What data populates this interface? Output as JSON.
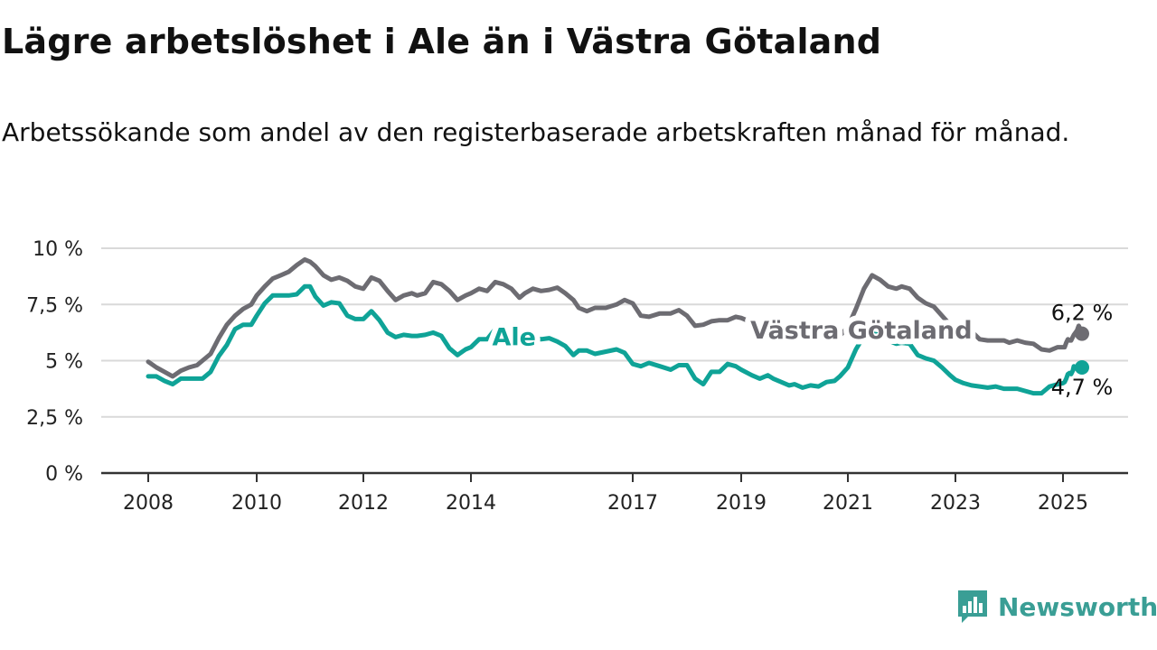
{
  "page": {
    "title": "Lägre arbetslöshet i Ale än i Västra Götaland",
    "subtitle": "Arbetssökande som andel av den registerbaserade arbetskraften månad för månad.",
    "brand": "Newsworthy"
  },
  "colors": {
    "ale": "#0fa397",
    "vg": "#6d6c72",
    "grid": "#d9d9d9",
    "axis": "#333333"
  },
  "chart_data": {
    "type": "line",
    "xlim": [
      2008,
      2025.7
    ],
    "ylim": [
      0,
      10
    ],
    "x_ticks": [
      2008,
      2010,
      2012,
      2014,
      2017,
      2019,
      2021,
      2023,
      2025
    ],
    "y_ticks": [
      {
        "value": 0,
        "label": "0 %"
      },
      {
        "value": 2.5,
        "label": "2,5 %"
      },
      {
        "value": 5,
        "label": "5 %"
      },
      {
        "value": 7.5,
        "label": "7,5 %"
      },
      {
        "value": 10,
        "label": "10 %"
      }
    ],
    "grid": true,
    "series": [
      {
        "name": "Västra Götaland",
        "key": "vg",
        "end_label": "6,2 %",
        "points": [
          [
            2008.0,
            4.95
          ],
          [
            2008.15,
            4.7
          ],
          [
            2008.3,
            4.5
          ],
          [
            2008.45,
            4.3
          ],
          [
            2008.6,
            4.55
          ],
          [
            2008.75,
            4.7
          ],
          [
            2008.9,
            4.8
          ],
          [
            2009.0,
            5.0
          ],
          [
            2009.15,
            5.3
          ],
          [
            2009.3,
            6.0
          ],
          [
            2009.45,
            6.6
          ],
          [
            2009.6,
            7.0
          ],
          [
            2009.75,
            7.3
          ],
          [
            2009.9,
            7.5
          ],
          [
            2010.0,
            7.9
          ],
          [
            2010.15,
            8.3
          ],
          [
            2010.3,
            8.65
          ],
          [
            2010.45,
            8.8
          ],
          [
            2010.6,
            8.95
          ],
          [
            2010.75,
            9.25
          ],
          [
            2010.9,
            9.5
          ],
          [
            2011.0,
            9.4
          ],
          [
            2011.1,
            9.2
          ],
          [
            2011.25,
            8.8
          ],
          [
            2011.4,
            8.6
          ],
          [
            2011.55,
            8.7
          ],
          [
            2011.7,
            8.55
          ],
          [
            2011.85,
            8.3
          ],
          [
            2012.0,
            8.2
          ],
          [
            2012.15,
            8.7
          ],
          [
            2012.3,
            8.55
          ],
          [
            2012.45,
            8.1
          ],
          [
            2012.6,
            7.7
          ],
          [
            2012.75,
            7.9
          ],
          [
            2012.9,
            8.0
          ],
          [
            2013.0,
            7.9
          ],
          [
            2013.15,
            8.0
          ],
          [
            2013.3,
            8.5
          ],
          [
            2013.45,
            8.4
          ],
          [
            2013.6,
            8.1
          ],
          [
            2013.75,
            7.7
          ],
          [
            2013.9,
            7.9
          ],
          [
            2014.0,
            8.0
          ],
          [
            2014.15,
            8.2
          ],
          [
            2014.3,
            8.1
          ],
          [
            2014.45,
            8.5
          ],
          [
            2014.6,
            8.4
          ],
          [
            2014.75,
            8.2
          ],
          [
            2014.9,
            7.8
          ],
          [
            2015.0,
            8.0
          ],
          [
            2015.15,
            8.2
          ],
          [
            2015.3,
            8.1
          ],
          [
            2015.45,
            8.15
          ],
          [
            2015.6,
            8.25
          ],
          [
            2015.75,
            8.0
          ],
          [
            2015.9,
            7.7
          ],
          [
            2016.0,
            7.35
          ],
          [
            2016.15,
            7.2
          ],
          [
            2016.3,
            7.35
          ],
          [
            2016.5,
            7.35
          ],
          [
            2016.7,
            7.5
          ],
          [
            2016.85,
            7.7
          ],
          [
            2017.0,
            7.55
          ],
          [
            2017.15,
            7.0
          ],
          [
            2017.3,
            6.95
          ],
          [
            2017.5,
            7.1
          ],
          [
            2017.7,
            7.1
          ],
          [
            2017.85,
            7.25
          ],
          [
            2018.0,
            7.0
          ],
          [
            2018.15,
            6.55
          ],
          [
            2018.3,
            6.6
          ],
          [
            2018.45,
            6.75
          ],
          [
            2018.6,
            6.8
          ],
          [
            2018.75,
            6.8
          ],
          [
            2018.9,
            6.95
          ],
          [
            2019.0,
            6.9
          ],
          [
            2019.2,
            6.7
          ],
          [
            2019.35,
            6.5
          ],
          [
            2019.5,
            6.3
          ],
          [
            2019.6,
            6.2
          ],
          [
            2019.75,
            6.1
          ],
          [
            2019.9,
            6.05
          ],
          [
            2020.0,
            6.1
          ],
          [
            2020.15,
            6.0
          ],
          [
            2020.3,
            5.95
          ],
          [
            2020.45,
            6.0
          ],
          [
            2020.6,
            5.95
          ],
          [
            2020.75,
            6.0
          ],
          [
            2020.85,
            6.1
          ],
          [
            2021.0,
            6.5
          ],
          [
            2021.15,
            7.3
          ],
          [
            2021.3,
            8.2
          ],
          [
            2021.45,
            8.8
          ],
          [
            2021.6,
            8.6
          ],
          [
            2021.75,
            8.3
          ],
          [
            2021.9,
            8.2
          ],
          [
            2022.0,
            8.3
          ],
          [
            2022.15,
            8.2
          ],
          [
            2022.3,
            7.8
          ],
          [
            2022.45,
            7.55
          ],
          [
            2022.6,
            7.4
          ],
          [
            2022.75,
            7.0
          ],
          [
            2022.9,
            6.6
          ],
          [
            2023.0,
            6.5
          ],
          [
            2023.15,
            6.5
          ],
          [
            2023.3,
            6.3
          ],
          [
            2023.45,
            5.95
          ],
          [
            2023.6,
            5.9
          ],
          [
            2023.75,
            5.9
          ],
          [
            2023.9,
            5.9
          ],
          [
            2024.0,
            5.8
          ],
          [
            2024.15,
            5.9
          ],
          [
            2024.3,
            5.8
          ],
          [
            2024.45,
            5.75
          ],
          [
            2024.6,
            5.5
          ],
          [
            2024.75,
            5.45
          ],
          [
            2024.9,
            5.6
          ],
          [
            2025.0,
            5.6
          ],
          [
            2025.15,
            5.6
          ],
          [
            2025.3,
            5.8
          ],
          [
            2025.45,
            5.95
          ],
          [
            2025.6,
            5.9
          ],
          [
            2025.75,
            5.9
          ],
          [
            2025.9,
            6.05
          ],
          [
            2026.0,
            6.15
          ],
          [
            2026.15,
            6.25
          ],
          [
            2026.3,
            6.35
          ],
          [
            2026.45,
            6.55
          ],
          [
            2026.6,
            6.4
          ],
          [
            2026.75,
            6.2
          ]
        ]
      },
      {
        "name": "Ale",
        "key": "ale",
        "end_label": "4,7 %",
        "points": [
          [
            2008.0,
            4.3
          ],
          [
            2008.15,
            4.3
          ],
          [
            2008.3,
            4.1
          ],
          [
            2008.45,
            3.95
          ],
          [
            2008.6,
            4.2
          ],
          [
            2008.75,
            4.2
          ],
          [
            2008.9,
            4.2
          ],
          [
            2009.0,
            4.2
          ],
          [
            2009.15,
            4.5
          ],
          [
            2009.3,
            5.2
          ],
          [
            2009.45,
            5.7
          ],
          [
            2009.6,
            6.4
          ],
          [
            2009.75,
            6.6
          ],
          [
            2009.9,
            6.6
          ],
          [
            2010.0,
            7.0
          ],
          [
            2010.15,
            7.55
          ],
          [
            2010.3,
            7.9
          ],
          [
            2010.45,
            7.9
          ],
          [
            2010.6,
            7.9
          ],
          [
            2010.75,
            7.95
          ],
          [
            2010.9,
            8.3
          ],
          [
            2011.0,
            8.3
          ],
          [
            2011.1,
            7.85
          ],
          [
            2011.25,
            7.45
          ],
          [
            2011.4,
            7.6
          ],
          [
            2011.55,
            7.55
          ],
          [
            2011.7,
            7.0
          ],
          [
            2011.85,
            6.85
          ],
          [
            2012.0,
            6.85
          ],
          [
            2012.15,
            7.2
          ],
          [
            2012.3,
            6.8
          ],
          [
            2012.45,
            6.25
          ],
          [
            2012.6,
            6.05
          ],
          [
            2012.75,
            6.15
          ],
          [
            2012.9,
            6.1
          ],
          [
            2013.0,
            6.1
          ],
          [
            2013.15,
            6.15
          ],
          [
            2013.3,
            6.25
          ],
          [
            2013.45,
            6.1
          ],
          [
            2013.6,
            5.55
          ],
          [
            2013.75,
            5.25
          ],
          [
            2013.9,
            5.5
          ],
          [
            2014.0,
            5.6
          ],
          [
            2014.15,
            5.95
          ],
          [
            2014.3,
            5.95
          ],
          [
            2014.45,
            6.4
          ],
          [
            2014.6,
            6.45
          ],
          [
            2014.75,
            6.4
          ],
          [
            2014.9,
            5.95
          ],
          [
            2015.0,
            6.0
          ],
          [
            2015.15,
            6.05
          ],
          [
            2015.3,
            5.95
          ],
          [
            2015.45,
            6.0
          ],
          [
            2015.6,
            5.85
          ],
          [
            2015.75,
            5.65
          ],
          [
            2015.9,
            5.25
          ],
          [
            2016.0,
            5.45
          ],
          [
            2016.15,
            5.45
          ],
          [
            2016.3,
            5.3
          ],
          [
            2016.5,
            5.4
          ],
          [
            2016.7,
            5.5
          ],
          [
            2016.85,
            5.35
          ],
          [
            2017.0,
            4.85
          ],
          [
            2017.15,
            4.75
          ],
          [
            2017.3,
            4.9
          ],
          [
            2017.5,
            4.75
          ],
          [
            2017.7,
            4.6
          ],
          [
            2017.85,
            4.8
          ],
          [
            2018.0,
            4.8
          ],
          [
            2018.15,
            4.2
          ],
          [
            2018.3,
            3.95
          ],
          [
            2018.45,
            4.5
          ],
          [
            2018.6,
            4.5
          ],
          [
            2018.75,
            4.85
          ],
          [
            2018.9,
            4.75
          ],
          [
            2019.0,
            4.6
          ],
          [
            2019.2,
            4.35
          ],
          [
            2019.35,
            4.2
          ],
          [
            2019.5,
            4.35
          ],
          [
            2019.6,
            4.2
          ],
          [
            2019.75,
            4.05
          ],
          [
            2019.9,
            3.9
          ],
          [
            2020.0,
            3.95
          ],
          [
            2020.15,
            3.8
          ],
          [
            2020.3,
            3.9
          ],
          [
            2020.45,
            3.85
          ],
          [
            2020.6,
            4.05
          ],
          [
            2020.75,
            4.1
          ],
          [
            2020.85,
            4.3
          ],
          [
            2021.0,
            4.7
          ],
          [
            2021.15,
            5.5
          ],
          [
            2021.3,
            6.1
          ],
          [
            2021.45,
            6.2
          ],
          [
            2021.6,
            6.15
          ],
          [
            2021.75,
            5.9
          ],
          [
            2021.9,
            5.75
          ],
          [
            2022.0,
            5.8
          ],
          [
            2022.15,
            5.75
          ],
          [
            2022.3,
            5.25
          ],
          [
            2022.45,
            5.1
          ],
          [
            2022.6,
            5.0
          ],
          [
            2022.75,
            4.7
          ],
          [
            2022.9,
            4.35
          ],
          [
            2023.0,
            4.15
          ],
          [
            2023.15,
            4.0
          ],
          [
            2023.3,
            3.9
          ],
          [
            2023.45,
            3.85
          ],
          [
            2023.6,
            3.8
          ],
          [
            2023.75,
            3.85
          ],
          [
            2023.9,
            3.75
          ],
          [
            2024.0,
            3.75
          ],
          [
            2024.15,
            3.75
          ],
          [
            2024.3,
            3.65
          ],
          [
            2024.45,
            3.55
          ],
          [
            2024.6,
            3.55
          ],
          [
            2024.75,
            3.85
          ],
          [
            2024.9,
            3.95
          ],
          [
            2025.0,
            4.0
          ],
          [
            2025.15,
            4.05
          ],
          [
            2025.3,
            4.2
          ],
          [
            2025.45,
            4.4
          ],
          [
            2025.6,
            4.45
          ],
          [
            2025.75,
            4.4
          ],
          [
            2025.9,
            4.55
          ],
          [
            2026.0,
            4.75
          ],
          [
            2026.15,
            4.65
          ],
          [
            2026.3,
            4.75
          ],
          [
            2026.45,
            4.8
          ],
          [
            2026.6,
            4.85
          ],
          [
            2026.75,
            4.7
          ]
        ]
      }
    ],
    "inline_labels": [
      {
        "series": "ale",
        "text": "Ale",
        "x": 2014.8,
        "y": 6.05
      },
      {
        "series": "vg",
        "text": "Västra Götaland",
        "x": 2021.25,
        "y": 6.35
      }
    ]
  }
}
